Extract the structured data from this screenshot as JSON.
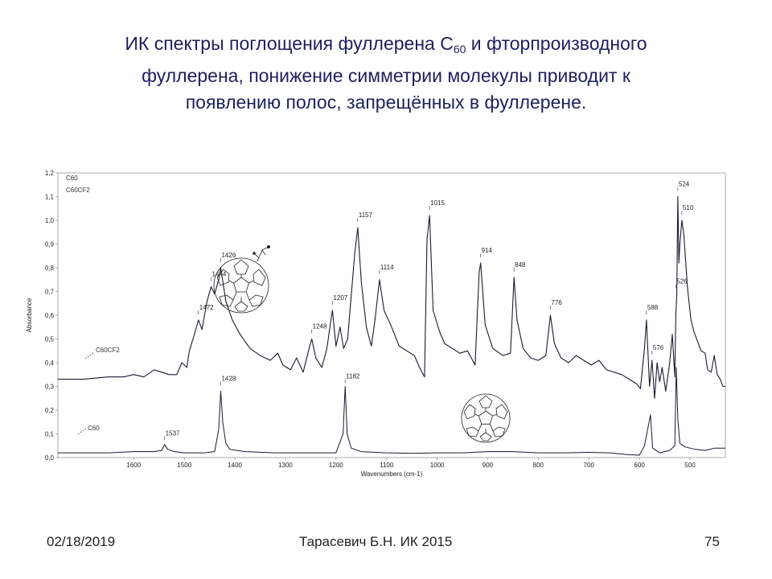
{
  "slide": {
    "title_line1_pre": "ИК спектры поглощения фуллерена С",
    "title_line1_sub": "60",
    "title_line1_post": " и фторпроизводного",
    "title_line2": "фуллерена, понижение симметрии молекулы приводит к",
    "title_line3": "появлению полос, запрещённых в фуллерене."
  },
  "footer": {
    "date": "02/18/2019",
    "author": "Тарасевич Б.Н.  ИК 2015",
    "page": "75"
  },
  "chart_data": {
    "type": "line",
    "xlabel": "Wavenumbers (cm-1)",
    "ylabel": "Absorbance",
    "xlim": [
      1750,
      430
    ],
    "ylim": [
      0.0,
      1.2
    ],
    "x_ticks": [
      "1600",
      "1500",
      "1400",
      "1300",
      "1200",
      "1100",
      "1000",
      "900",
      "800",
      "700",
      "600",
      "500"
    ],
    "y_ticks": [
      "1,2",
      "1,1",
      "1,0",
      "0,9",
      "0,8",
      "0,7",
      "0,6",
      "0,5",
      "0,4",
      "0,3",
      "0,2",
      "0,1",
      "0,0"
    ],
    "legend": [
      "C60",
      "C60CF2"
    ],
    "series_labels": [
      "C60CF2",
      "C60"
    ],
    "series": [
      {
        "name": "C60CF2",
        "points": [
          [
            1750,
            0.33
          ],
          [
            1700,
            0.33
          ],
          [
            1650,
            0.34
          ],
          [
            1620,
            0.34
          ],
          [
            1600,
            0.35
          ],
          [
            1580,
            0.34
          ],
          [
            1560,
            0.37
          ],
          [
            1545,
            0.36
          ],
          [
            1530,
            0.35
          ],
          [
            1515,
            0.35
          ],
          [
            1505,
            0.4
          ],
          [
            1495,
            0.38
          ],
          [
            1490,
            0.45
          ],
          [
            1480,
            0.52
          ],
          [
            1472,
            0.58
          ],
          [
            1465,
            0.54
          ],
          [
            1455,
            0.66
          ],
          [
            1447,
            0.72
          ],
          [
            1440,
            0.69
          ],
          [
            1432,
            0.75
          ],
          [
            1428,
            0.8
          ],
          [
            1418,
            0.66
          ],
          [
            1405,
            0.58
          ],
          [
            1390,
            0.52
          ],
          [
            1370,
            0.46
          ],
          [
            1350,
            0.43
          ],
          [
            1330,
            0.41
          ],
          [
            1315,
            0.44
          ],
          [
            1305,
            0.39
          ],
          [
            1290,
            0.37
          ],
          [
            1278,
            0.42
          ],
          [
            1265,
            0.36
          ],
          [
            1252,
            0.47
          ],
          [
            1248,
            0.5
          ],
          [
            1240,
            0.42
          ],
          [
            1228,
            0.38
          ],
          [
            1218,
            0.46
          ],
          [
            1210,
            0.58
          ],
          [
            1207,
            0.62
          ],
          [
            1200,
            0.47
          ],
          [
            1192,
            0.55
          ],
          [
            1185,
            0.46
          ],
          [
            1177,
            0.5
          ],
          [
            1170,
            0.68
          ],
          [
            1163,
            0.86
          ],
          [
            1157,
            0.97
          ],
          [
            1150,
            0.74
          ],
          [
            1140,
            0.55
          ],
          [
            1130,
            0.47
          ],
          [
            1123,
            0.58
          ],
          [
            1114,
            0.75
          ],
          [
            1105,
            0.62
          ],
          [
            1090,
            0.55
          ],
          [
            1075,
            0.47
          ],
          [
            1060,
            0.45
          ],
          [
            1045,
            0.43
          ],
          [
            1035,
            0.38
          ],
          [
            1025,
            0.34
          ],
          [
            1020,
            0.92
          ],
          [
            1015,
            1.02
          ],
          [
            1008,
            0.62
          ],
          [
            995,
            0.53
          ],
          [
            985,
            0.48
          ],
          [
            970,
            0.46
          ],
          [
            955,
            0.44
          ],
          [
            940,
            0.45
          ],
          [
            925,
            0.39
          ],
          [
            917,
            0.78
          ],
          [
            914,
            0.82
          ],
          [
            905,
            0.56
          ],
          [
            890,
            0.46
          ],
          [
            870,
            0.43
          ],
          [
            855,
            0.44
          ],
          [
            848,
            0.76
          ],
          [
            842,
            0.58
          ],
          [
            830,
            0.46
          ],
          [
            815,
            0.42
          ],
          [
            800,
            0.41
          ],
          [
            785,
            0.43
          ],
          [
            776,
            0.6
          ],
          [
            768,
            0.48
          ],
          [
            755,
            0.42
          ],
          [
            740,
            0.4
          ],
          [
            725,
            0.43
          ],
          [
            710,
            0.41
          ],
          [
            695,
            0.39
          ],
          [
            680,
            0.41
          ],
          [
            665,
            0.37
          ],
          [
            650,
            0.36
          ],
          [
            635,
            0.35
          ],
          [
            620,
            0.33
          ],
          [
            605,
            0.31
          ],
          [
            598,
            0.29
          ],
          [
            590,
            0.46
          ],
          [
            586,
            0.58
          ],
          [
            580,
            0.3
          ],
          [
            575,
            0.41
          ],
          [
            570,
            0.25
          ],
          [
            565,
            0.4
          ],
          [
            560,
            0.32
          ],
          [
            555,
            0.38
          ],
          [
            548,
            0.28
          ],
          [
            540,
            0.4
          ],
          [
            535,
            0.52
          ],
          [
            530,
            0.34
          ],
          [
            528,
            0.6
          ],
          [
            526,
            0.69
          ],
          [
            524,
            1.1
          ],
          [
            522,
            0.82
          ],
          [
            520,
            0.9
          ],
          [
            516,
            1.0
          ],
          [
            512,
            0.94
          ],
          [
            505,
            0.72
          ],
          [
            498,
            0.58
          ],
          [
            492,
            0.53
          ],
          [
            485,
            0.49
          ],
          [
            478,
            0.45
          ],
          [
            470,
            0.44
          ],
          [
            465,
            0.37
          ],
          [
            458,
            0.36
          ],
          [
            452,
            0.43
          ],
          [
            446,
            0.35
          ],
          [
            440,
            0.33
          ],
          [
            435,
            0.3
          ],
          [
            430,
            0.3
          ]
        ]
      },
      {
        "name": "C60",
        "points": [
          [
            1750,
            0.02
          ],
          [
            1700,
            0.02
          ],
          [
            1650,
            0.02
          ],
          [
            1600,
            0.025
          ],
          [
            1560,
            0.025
          ],
          [
            1545,
            0.03
          ],
          [
            1539,
            0.055
          ],
          [
            1533,
            0.035
          ],
          [
            1520,
            0.025
          ],
          [
            1500,
            0.02
          ],
          [
            1460,
            0.02
          ],
          [
            1440,
            0.025
          ],
          [
            1432,
            0.12
          ],
          [
            1428,
            0.28
          ],
          [
            1424,
            0.15
          ],
          [
            1418,
            0.06
          ],
          [
            1410,
            0.035
          ],
          [
            1380,
            0.025
          ],
          [
            1320,
            0.02
          ],
          [
            1260,
            0.02
          ],
          [
            1200,
            0.02
          ],
          [
            1186,
            0.1
          ],
          [
            1182,
            0.3
          ],
          [
            1178,
            0.1
          ],
          [
            1170,
            0.04
          ],
          [
            1150,
            0.025
          ],
          [
            1100,
            0.02
          ],
          [
            1050,
            0.018
          ],
          [
            1000,
            0.02
          ],
          [
            950,
            0.02
          ],
          [
            900,
            0.025
          ],
          [
            850,
            0.025
          ],
          [
            800,
            0.02
          ],
          [
            750,
            0.02
          ],
          [
            700,
            0.022
          ],
          [
            660,
            0.02
          ],
          [
            620,
            0.012
          ],
          [
            600,
            0.01
          ],
          [
            590,
            0.05
          ],
          [
            578,
            0.18
          ],
          [
            574,
            0.04
          ],
          [
            560,
            0.02
          ],
          [
            540,
            0.03
          ],
          [
            530,
            0.05
          ],
          [
            527,
            0.38
          ],
          [
            524,
            0.16
          ],
          [
            520,
            0.06
          ],
          [
            510,
            0.045
          ],
          [
            490,
            0.035
          ],
          [
            470,
            0.03
          ],
          [
            450,
            0.04
          ],
          [
            430,
            0.04
          ]
        ]
      }
    ],
    "peaks": [
      {
        "label": "1472",
        "x": 1472,
        "y": 0.6
      },
      {
        "label": "1444",
        "x": 1447,
        "y": 0.74
      },
      {
        "label": "1426",
        "x": 1428,
        "y": 0.82
      },
      {
        "label": "1248",
        "x": 1248,
        "y": 0.52
      },
      {
        "label": "1207",
        "x": 1207,
        "y": 0.64
      },
      {
        "label": "1157",
        "x": 1157,
        "y": 0.99
      },
      {
        "label": "1114",
        "x": 1114,
        "y": 0.77
      },
      {
        "label": "1015",
        "x": 1015,
        "y": 1.04
      },
      {
        "label": "914",
        "x": 914,
        "y": 0.84
      },
      {
        "label": "848",
        "x": 848,
        "y": 0.78
      },
      {
        "label": "776",
        "x": 776,
        "y": 0.62
      },
      {
        "label": "588",
        "x": 586,
        "y": 0.6
      },
      {
        "label": "576",
        "x": 575,
        "y": 0.43
      },
      {
        "label": "526",
        "x": 528,
        "y": 0.71
      },
      {
        "label": "524",
        "x": 524,
        "y": 1.12
      },
      {
        "label": "510",
        "x": 516,
        "y": 1.02
      },
      {
        "label": "1428",
        "x": 1428,
        "y": 0.3
      },
      {
        "label": "1182",
        "x": 1182,
        "y": 0.31
      },
      {
        "label": "1537",
        "x": 1539,
        "y": 0.07
      }
    ]
  }
}
